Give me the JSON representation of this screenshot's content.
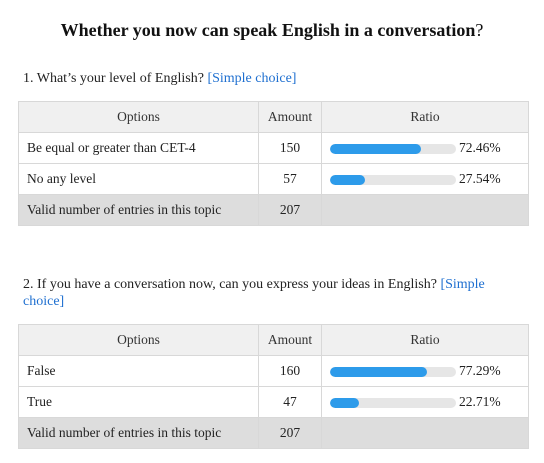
{
  "page": {
    "title": "Whether you now can speak English in a conversation",
    "title_mark": "?"
  },
  "headers": {
    "options": "Options",
    "amount": "Amount",
    "ratio": "Ratio"
  },
  "colors": {
    "bar": "#2d9bea",
    "track": "#e6e6e6",
    "total_row": "#dddddd",
    "choice_link": "#1e6fd0"
  },
  "questions": [
    {
      "text": "1. What’s your level of English?",
      "type": "[Simple choice]",
      "rows": [
        {
          "option": "Be equal or greater than CET-4",
          "amount": "150",
          "ratio_label": "72.46%",
          "ratio": 72.46
        },
        {
          "option": "No any level",
          "amount": "57",
          "ratio_label": "27.54%",
          "ratio": 27.54
        }
      ],
      "total": {
        "label": "Valid number of entries in this topic",
        "amount": "207"
      }
    },
    {
      "text": "2. If you have a conversation now, can you express your ideas in English?",
      "type": "[Simple choice]",
      "rows": [
        {
          "option": "False",
          "amount": "160",
          "ratio_label": "77.29%",
          "ratio": 77.29
        },
        {
          "option": "True",
          "amount": "47",
          "ratio_label": "22.71%",
          "ratio": 22.71
        }
      ],
      "total": {
        "label": "Valid number of entries in this topic",
        "amount": "207"
      }
    }
  ]
}
